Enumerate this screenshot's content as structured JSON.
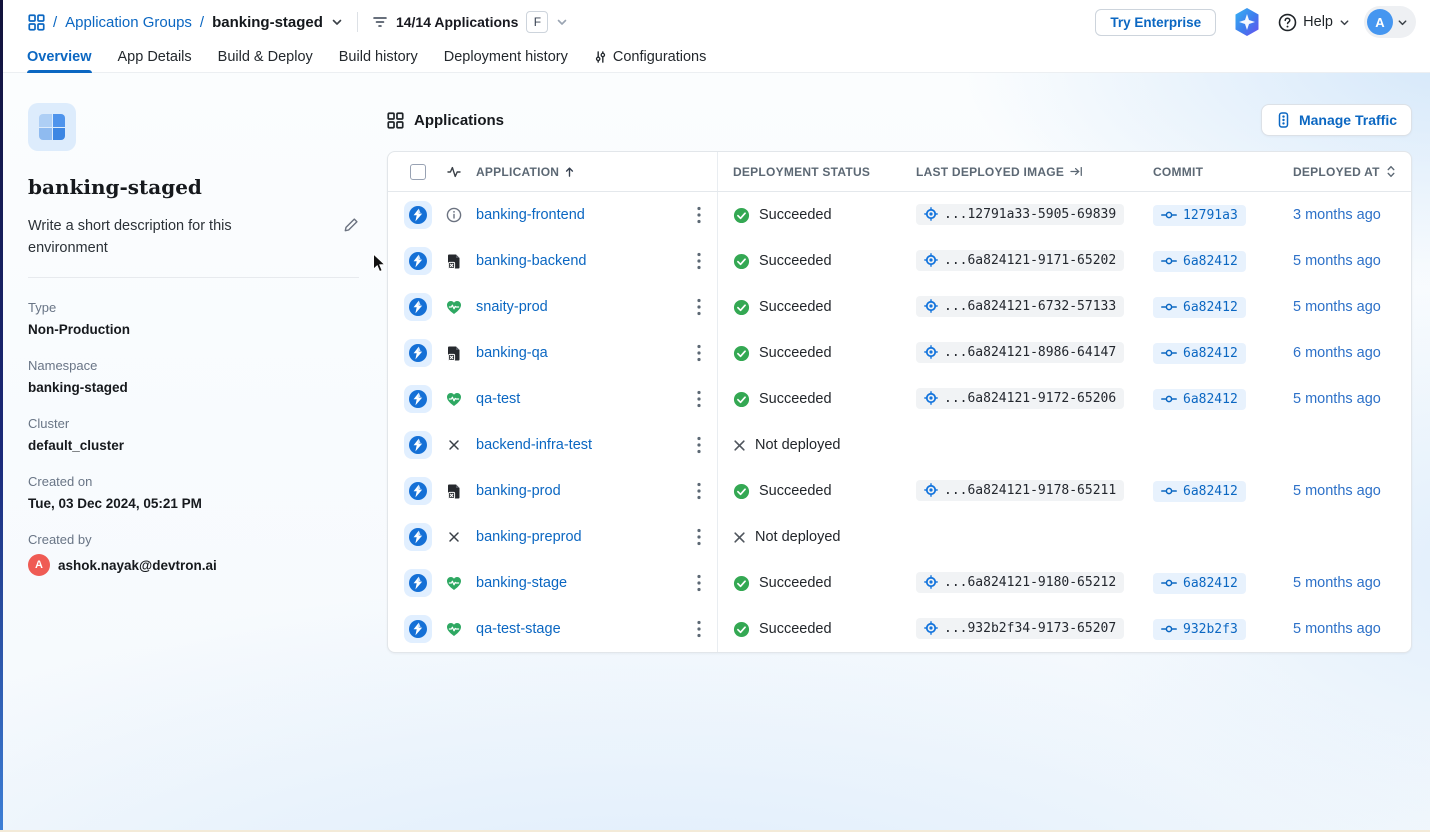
{
  "colors": {
    "accent_blue": "#0b67c2",
    "success_green": "#34a853",
    "link_blue": "#2d71c8",
    "avatar_red": "#ef5b54",
    "avatar_blue": "#4596f0",
    "chip_gray_bg": "#f1f3f5",
    "chip_blue_bg": "#e8f2fd"
  },
  "topbar": {
    "breadcrumb": {
      "sep1": "/",
      "group_link": "Application Groups",
      "sep2": "/",
      "current": "banking-staged"
    },
    "filter": {
      "count_label": "14/14 Applications",
      "shortcut_key": "F"
    },
    "try_enterprise_label": "Try Enterprise",
    "help_label": "Help",
    "user_initial": "A"
  },
  "tabs": [
    {
      "label": "Overview",
      "active": true
    },
    {
      "label": "App Details",
      "active": false
    },
    {
      "label": "Build & Deploy",
      "active": false
    },
    {
      "label": "Build history",
      "active": false
    },
    {
      "label": "Deployment history",
      "active": false
    },
    {
      "label": "Configurations",
      "active": false,
      "icon": "sliders-icon"
    }
  ],
  "sidebar": {
    "title": "banking-staged",
    "description_placeholder": "Write a short description for this environment",
    "fields": [
      {
        "label": "Type",
        "value": "Non-Production"
      },
      {
        "label": "Namespace",
        "value": "banking-staged"
      },
      {
        "label": "Cluster",
        "value": "default_cluster"
      },
      {
        "label": "Created on",
        "value": "Tue, 03 Dec 2024, 05:21 PM"
      },
      {
        "label": "Created by",
        "value": "ashok.nayak@devtron.ai",
        "avatar_initial": "A"
      }
    ]
  },
  "main": {
    "section_title": "Applications",
    "manage_traffic_label": "Manage Traffic",
    "table": {
      "columns": {
        "application": "APPLICATION",
        "deployment_status": "DEPLOYMENT STATUS",
        "last_deployed_image": "LAST DEPLOYED IMAGE",
        "commit": "COMMIT",
        "deployed_at": "DEPLOYED AT"
      },
      "rows": [
        {
          "name": "banking-frontend",
          "app_icon": "info-icon",
          "status": "Succeeded",
          "image": "...12791a33-5905-69839",
          "commit": "12791a3",
          "deployed_at": "3 months ago"
        },
        {
          "name": "banking-backend",
          "app_icon": "file-missing-icon",
          "status": "Succeeded",
          "image": "...6a824121-9171-65202",
          "commit": "6a82412",
          "deployed_at": "5 months ago"
        },
        {
          "name": "snaity-prod",
          "app_icon": "healthy-heart-icon",
          "status": "Succeeded",
          "image": "...6a824121-6732-57133",
          "commit": "6a82412",
          "deployed_at": "5 months ago"
        },
        {
          "name": "banking-qa",
          "app_icon": "file-missing-icon",
          "status": "Succeeded",
          "image": "...6a824121-8986-64147",
          "commit": "6a82412",
          "deployed_at": "6 months ago"
        },
        {
          "name": "qa-test",
          "app_icon": "healthy-heart-icon",
          "status": "Succeeded",
          "image": "...6a824121-9172-65206",
          "commit": "6a82412",
          "deployed_at": "5 months ago"
        },
        {
          "name": "backend-infra-test",
          "app_icon": "x-icon",
          "status": "Not deployed",
          "image": "",
          "commit": "",
          "deployed_at": ""
        },
        {
          "name": "banking-prod",
          "app_icon": "file-missing-icon",
          "status": "Succeeded",
          "image": "...6a824121-9178-65211",
          "commit": "6a82412",
          "deployed_at": "5 months ago"
        },
        {
          "name": "banking-preprod",
          "app_icon": "x-icon",
          "status": "Not deployed",
          "image": "",
          "commit": "",
          "deployed_at": ""
        },
        {
          "name": "banking-stage",
          "app_icon": "healthy-heart-icon",
          "status": "Succeeded",
          "image": "...6a824121-9180-65212",
          "commit": "6a82412",
          "deployed_at": "5 months ago"
        },
        {
          "name": "qa-test-stage",
          "app_icon": "healthy-heart-icon",
          "status": "Succeeded",
          "image": "...932b2f34-9173-65207",
          "commit": "932b2f3",
          "deployed_at": "5 months ago"
        }
      ]
    }
  }
}
